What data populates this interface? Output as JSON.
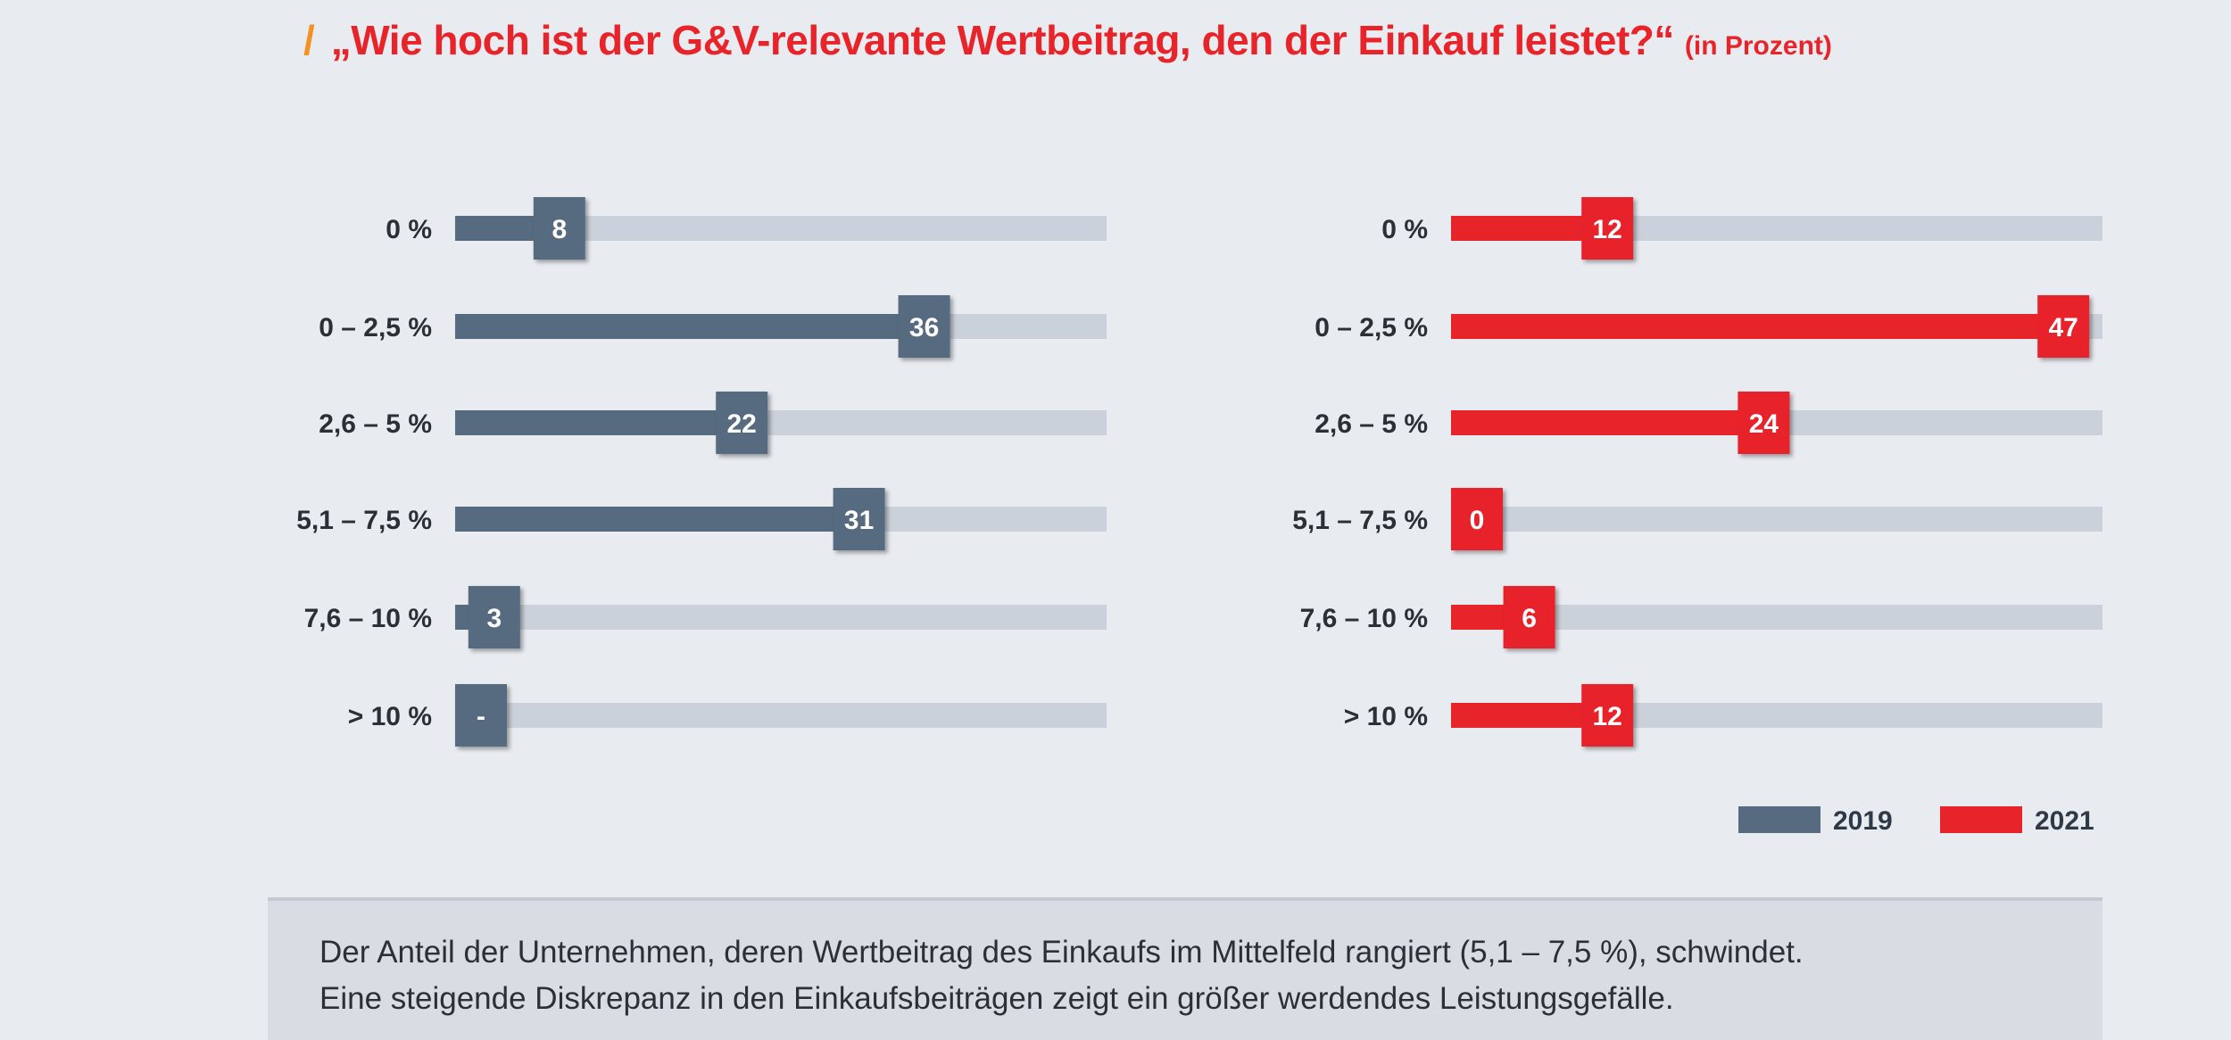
{
  "header": {
    "slash": "/",
    "title": "„Wie hoch ist der G&V-relevante Wertbeitrag, den der Einkauf leistet?“",
    "unit": "(in Prozent)"
  },
  "colors": {
    "series_2019": "#566a80",
    "series_2021": "#e8242b",
    "track": "#cbd1da",
    "title": "#e8242b",
    "slash": "#f39221"
  },
  "chart_data": [
    {
      "type": "bar",
      "orientation": "horizontal",
      "categories": [
        "0 %",
        "0 – 2,5 %",
        "2,6 – 5 %",
        "5,1 – 7,5 %",
        "7,6 – 10 %",
        "> 10 %"
      ],
      "series": [
        {
          "name": "2019",
          "values": [
            8,
            36,
            22,
            31,
            3,
            null
          ],
          "labels": [
            "8",
            "36",
            "22",
            "31",
            "3",
            "-"
          ]
        }
      ],
      "xlim": [
        0,
        50
      ],
      "title": "",
      "xlabel": "",
      "ylabel": ""
    },
    {
      "type": "bar",
      "orientation": "horizontal",
      "categories": [
        "0 %",
        "0 – 2,5 %",
        "2,6 – 5 %",
        "5,1 – 7,5 %",
        "7,6 – 10 %",
        "> 10 %"
      ],
      "series": [
        {
          "name": "2021",
          "values": [
            12,
            47,
            24,
            0,
            6,
            12
          ],
          "labels": [
            "12",
            "47",
            "24",
            "0",
            "6",
            "12"
          ]
        }
      ],
      "xlim": [
        0,
        50
      ],
      "title": "",
      "xlabel": "",
      "ylabel": ""
    }
  ],
  "legend": [
    {
      "label": "2019"
    },
    {
      "label": "2021"
    }
  ],
  "note": {
    "line1": "Der Anteil der Unternehmen, deren Wertbeitrag des Einkaufs im Mittelfeld rangiert (5,1 – 7,5 %), schwindet.",
    "line2": "Eine steigende Diskrepanz in den Einkaufsbeiträgen zeigt ein größer werdendes Leistungsgefälle."
  }
}
